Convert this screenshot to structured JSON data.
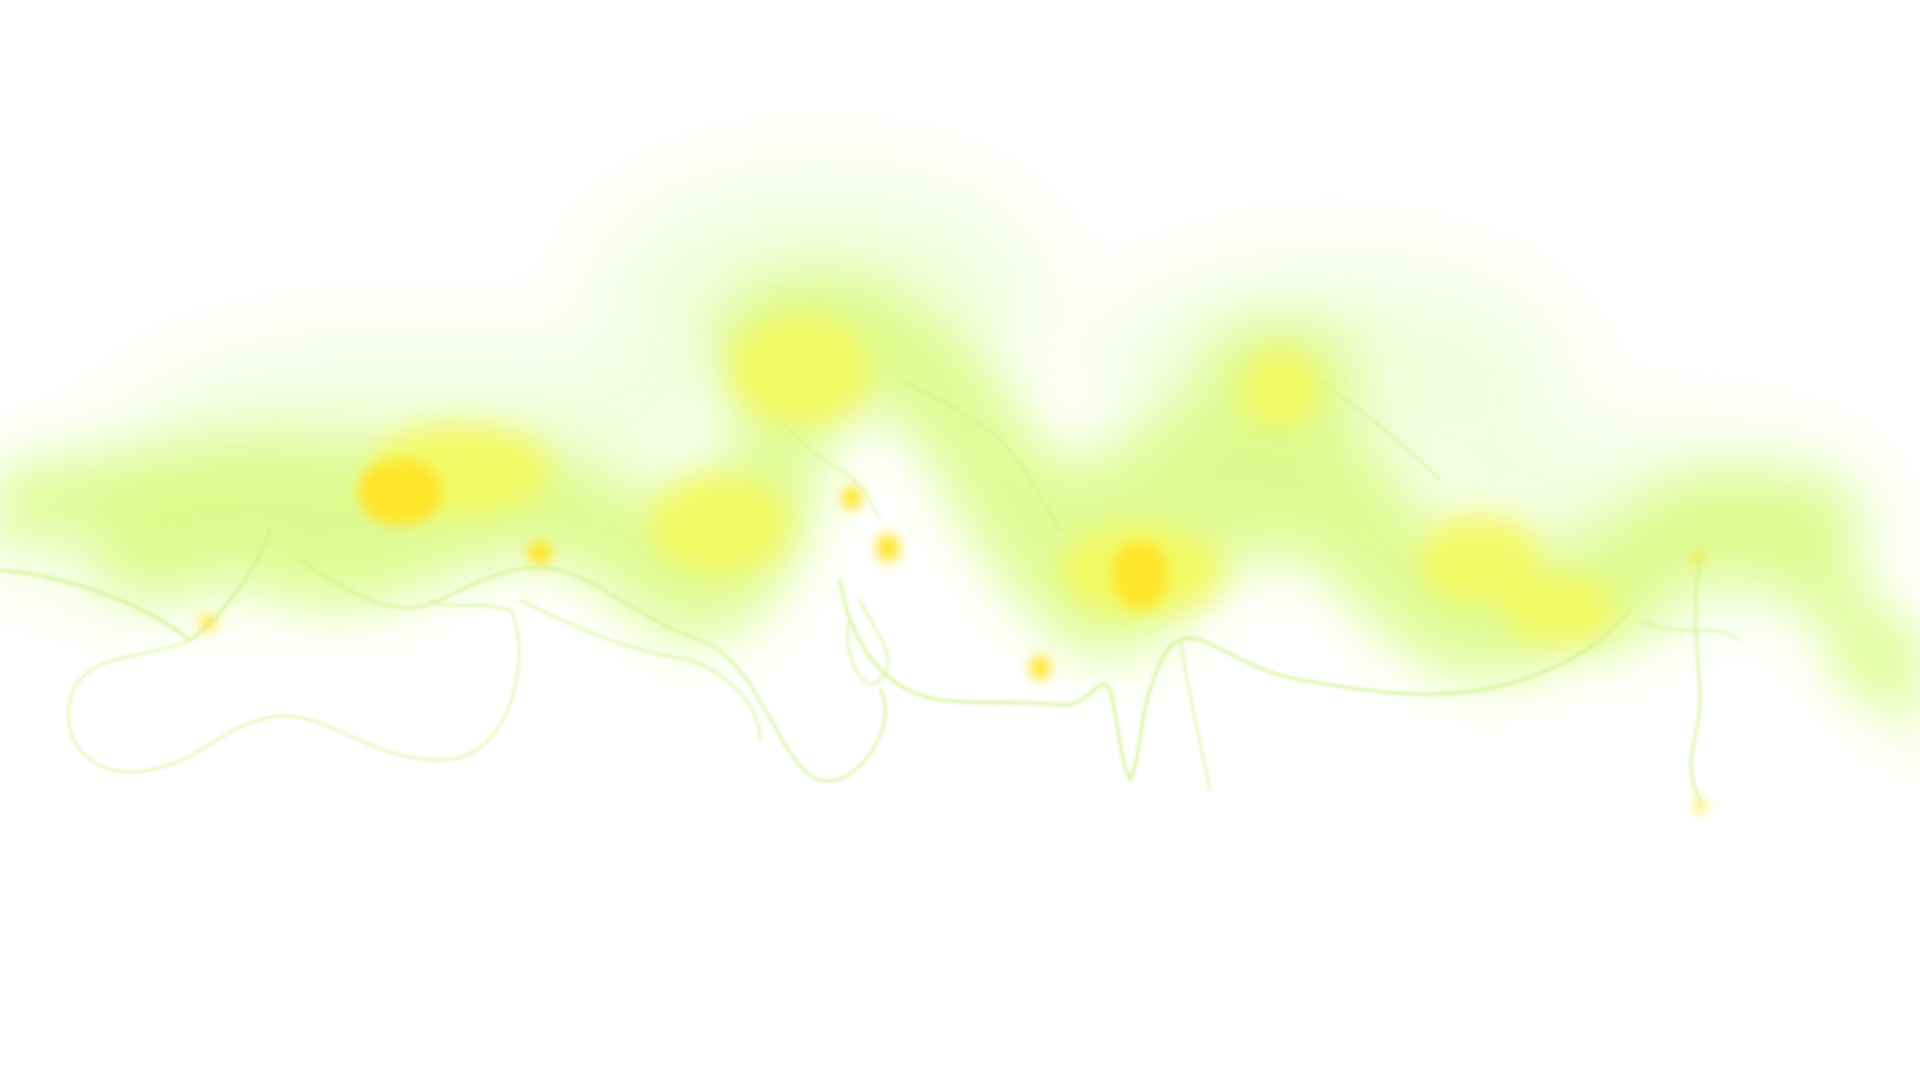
{
  "image": {
    "background_color": "#ffffff",
    "palette": {
      "haze": "#e8fbc0",
      "glow_green": "#d9f97a",
      "glow_yellow": "#f6f95a",
      "hotspot": "#ffe52a",
      "filament": "#cdf28a"
    }
  }
}
